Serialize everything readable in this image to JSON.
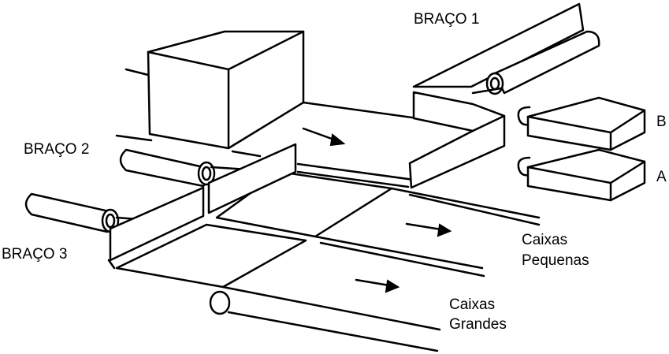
{
  "labels": {
    "arm1": "BRAÇO 1",
    "arm2": "BRAÇO 2",
    "arm3": "BRAÇO 3",
    "sensor_b": "B",
    "sensor_a": "A",
    "small_boxes_line1": "Caixas",
    "small_boxes_line2": "Pequenas",
    "large_boxes_line1": "Caixas",
    "large_boxes_line2": "Grandes"
  },
  "colors": {
    "stroke": "#000000",
    "background": "#ffffff"
  }
}
